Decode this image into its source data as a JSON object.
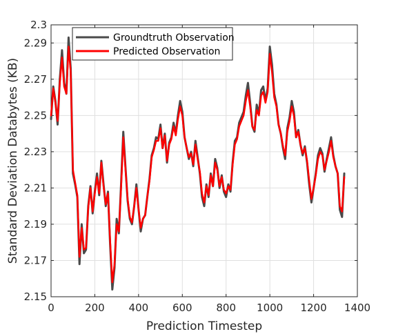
{
  "chart_data": {
    "type": "line",
    "title": "",
    "xlabel": "Prediction Timestep",
    "ylabel": "Standard Deviation Databytes (KB)",
    "xlim": [
      0,
      1400
    ],
    "ylim": [
      2.15,
      2.3
    ],
    "xticks": [
      0,
      200,
      400,
      600,
      800,
      1000,
      1200,
      1400
    ],
    "xtick_labels": [
      "0",
      "200",
      "400",
      "600",
      "800",
      "1000",
      "1200",
      "1400"
    ],
    "yticks": [
      2.15,
      2.17,
      2.19,
      2.21,
      2.23,
      2.25,
      2.27,
      2.29,
      2.3
    ],
    "ytick_labels": [
      "2.15",
      "2.17",
      "2.19",
      "2.21",
      "2.23",
      "2.25",
      "2.27",
      "2.29",
      "2.3"
    ],
    "grid": true,
    "legend_position": "top-left",
    "series": [
      {
        "name": "Groundtruth Observation",
        "color": "#4a4a4a",
        "x": [
          0,
          10,
          20,
          30,
          40,
          50,
          60,
          70,
          80,
          90,
          100,
          110,
          120,
          130,
          140,
          150,
          160,
          170,
          180,
          190,
          200,
          210,
          220,
          230,
          240,
          250,
          260,
          270,
          280,
          290,
          300,
          310,
          320,
          330,
          340,
          350,
          360,
          370,
          380,
          390,
          400,
          410,
          420,
          430,
          440,
          450,
          460,
          470,
          480,
          490,
          500,
          510,
          520,
          530,
          540,
          550,
          560,
          570,
          580,
          590,
          600,
          610,
          620,
          630,
          640,
          650,
          660,
          670,
          680,
          690,
          700,
          710,
          720,
          730,
          740,
          750,
          760,
          770,
          780,
          790,
          800,
          810,
          820,
          830,
          840,
          850,
          860,
          870,
          880,
          890,
          900,
          910,
          920,
          930,
          940,
          950,
          960,
          970,
          980,
          990,
          1000,
          1010,
          1020,
          1030,
          1040,
          1050,
          1060,
          1070,
          1080,
          1090,
          1100,
          1110,
          1120,
          1130,
          1140,
          1150,
          1160,
          1170,
          1180,
          1190,
          1200,
          1210,
          1220,
          1230,
          1240,
          1250,
          1260,
          1270,
          1280,
          1290,
          1300,
          1310,
          1320,
          1330,
          1340
        ],
        "values": [
          2.248,
          2.266,
          2.258,
          2.245,
          2.27,
          2.286,
          2.268,
          2.262,
          2.293,
          2.276,
          2.218,
          2.212,
          2.205,
          2.168,
          2.19,
          2.174,
          2.176,
          2.2,
          2.211,
          2.196,
          2.208,
          2.218,
          2.206,
          2.225,
          2.212,
          2.2,
          2.208,
          2.179,
          2.154,
          2.166,
          2.193,
          2.185,
          2.212,
          2.241,
          2.222,
          2.203,
          2.193,
          2.19,
          2.2,
          2.212,
          2.198,
          2.186,
          2.193,
          2.195,
          2.205,
          2.215,
          2.228,
          2.232,
          2.238,
          2.237,
          2.245,
          2.232,
          2.24,
          2.224,
          2.235,
          2.238,
          2.246,
          2.24,
          2.25,
          2.258,
          2.252,
          2.238,
          2.232,
          2.226,
          2.23,
          2.222,
          2.236,
          2.227,
          2.218,
          2.205,
          2.2,
          2.212,
          2.205,
          2.218,
          2.211,
          2.226,
          2.221,
          2.21,
          2.217,
          2.208,
          2.205,
          2.212,
          2.208,
          2.224,
          2.236,
          2.238,
          2.246,
          2.249,
          2.252,
          2.261,
          2.268,
          2.257,
          2.244,
          2.241,
          2.256,
          2.251,
          2.264,
          2.266,
          2.258,
          2.265,
          2.288,
          2.278,
          2.262,
          2.256,
          2.245,
          2.24,
          2.232,
          2.226,
          2.243,
          2.249,
          2.258,
          2.252,
          2.238,
          2.242,
          2.234,
          2.228,
          2.233,
          2.224,
          2.212,
          2.202,
          2.21,
          2.218,
          2.228,
          2.232,
          2.229,
          2.219,
          2.226,
          2.232,
          2.238,
          2.228,
          2.222,
          2.218,
          2.198,
          2.194,
          2.218
        ]
      },
      {
        "name": "Predicted Observation",
        "color": "#ff0000",
        "x": [
          0,
          10,
          20,
          30,
          40,
          50,
          60,
          70,
          80,
          90,
          100,
          110,
          120,
          130,
          140,
          150,
          160,
          170,
          180,
          190,
          200,
          210,
          220,
          230,
          240,
          250,
          260,
          270,
          280,
          290,
          300,
          310,
          320,
          330,
          340,
          350,
          360,
          370,
          380,
          390,
          400,
          410,
          420,
          430,
          440,
          450,
          460,
          470,
          480,
          490,
          500,
          510,
          520,
          530,
          540,
          550,
          560,
          570,
          580,
          590,
          600,
          610,
          620,
          630,
          640,
          650,
          660,
          670,
          680,
          690,
          700,
          710,
          720,
          730,
          740,
          750,
          760,
          770,
          780,
          790,
          800,
          810,
          820,
          830,
          840,
          850,
          860,
          870,
          880,
          890,
          900,
          910,
          920,
          930,
          940,
          950,
          960,
          970,
          980,
          990,
          1000,
          1010,
          1020,
          1030,
          1040,
          1050,
          1060,
          1070,
          1080,
          1090,
          1100,
          1110,
          1120,
          1130,
          1140,
          1150,
          1160,
          1170,
          1180,
          1190,
          1200,
          1210,
          1220,
          1230,
          1240,
          1250,
          1260,
          1270,
          1280,
          1290,
          1300,
          1310,
          1320,
          1330,
          1340
        ],
        "values": [
          2.25,
          2.265,
          2.257,
          2.247,
          2.268,
          2.282,
          2.266,
          2.262,
          2.288,
          2.274,
          2.22,
          2.213,
          2.206,
          2.172,
          2.188,
          2.176,
          2.177,
          2.199,
          2.21,
          2.197,
          2.207,
          2.216,
          2.207,
          2.224,
          2.211,
          2.201,
          2.207,
          2.181,
          2.158,
          2.168,
          2.19,
          2.186,
          2.21,
          2.238,
          2.221,
          2.204,
          2.194,
          2.191,
          2.2,
          2.21,
          2.198,
          2.188,
          2.193,
          2.195,
          2.205,
          2.214,
          2.227,
          2.231,
          2.236,
          2.236,
          2.243,
          2.232,
          2.239,
          2.225,
          2.234,
          2.237,
          2.244,
          2.239,
          2.248,
          2.255,
          2.25,
          2.238,
          2.232,
          2.227,
          2.229,
          2.223,
          2.234,
          2.226,
          2.219,
          2.207,
          2.202,
          2.211,
          2.206,
          2.217,
          2.211,
          2.224,
          2.22,
          2.211,
          2.216,
          2.209,
          2.207,
          2.211,
          2.209,
          2.223,
          2.234,
          2.237,
          2.244,
          2.247,
          2.25,
          2.258,
          2.264,
          2.255,
          2.244,
          2.242,
          2.253,
          2.25,
          2.261,
          2.263,
          2.257,
          2.263,
          2.284,
          2.274,
          2.26,
          2.255,
          2.245,
          2.24,
          2.233,
          2.228,
          2.241,
          2.247,
          2.255,
          2.25,
          2.238,
          2.241,
          2.234,
          2.229,
          2.232,
          2.225,
          2.214,
          2.204,
          2.21,
          2.217,
          2.226,
          2.23,
          2.228,
          2.22,
          2.225,
          2.23,
          2.236,
          2.227,
          2.222,
          2.218,
          2.2,
          2.197,
          2.216
        ]
      }
    ]
  }
}
